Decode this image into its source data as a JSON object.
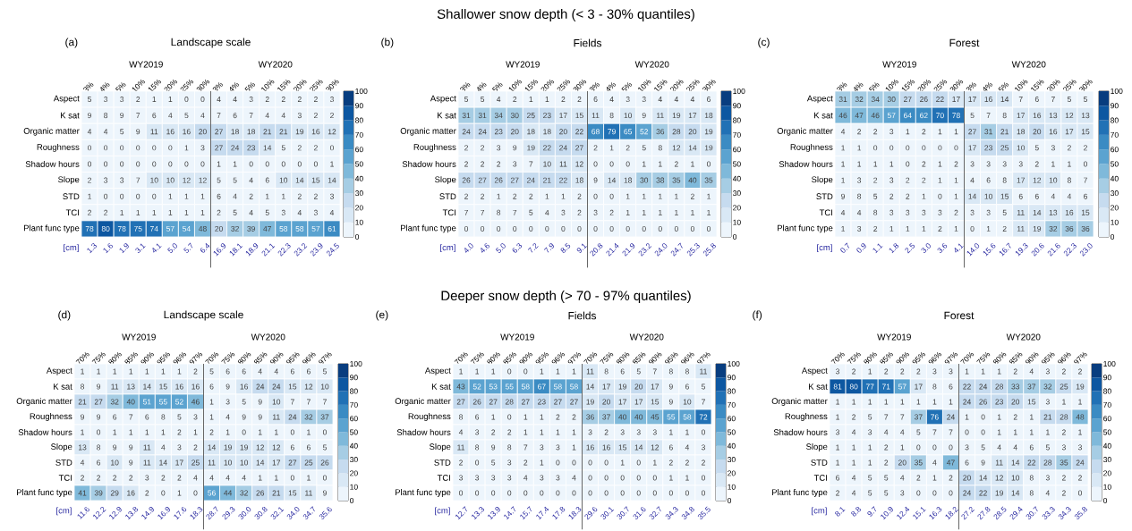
{
  "chart_data": [
    {
      "type": "heatmap",
      "data_labels": true,
      "title": "Landscape scale",
      "xlabel": "[cm]",
      "annotations": [
        "Shallower snow depth (< 3 - 30% quantiles)",
        "(a)",
        "WY2019",
        "WY2020",
        "1.3",
        "1.6",
        "1.9",
        "3.1",
        "4.1",
        "5.0",
        "5.7",
        "6.4",
        "16.9",
        "18.1",
        "18.9",
        "21.1",
        "22.3",
        "23.2",
        "23.9",
        "24.5"
      ],
      "categories": [
        "3%",
        "4%",
        "5%",
        "10%",
        "15%",
        "20%",
        "25%",
        "30%",
        "3%",
        "4%",
        "5%",
        "10%",
        "15%",
        "20%",
        "25%",
        "30%"
      ],
      "y_categories": [
        "Aspect",
        "K sat",
        "Organic matter",
        "Roughness",
        "Shadow hours",
        "Slope",
        "STD",
        "TCI",
        "Plant func type"
      ],
      "cells": [
        [
          5,
          3,
          3,
          2,
          1,
          1,
          0,
          0,
          4,
          4,
          3,
          2,
          2,
          2,
          2,
          3
        ],
        [
          9,
          8,
          9,
          7,
          6,
          4,
          5,
          4,
          7,
          6,
          7,
          4,
          4,
          3,
          2,
          2
        ],
        [
          4,
          4,
          5,
          9,
          11,
          16,
          16,
          20,
          27,
          18,
          18,
          21,
          21,
          19,
          16,
          12
        ],
        [
          0,
          0,
          0,
          0,
          0,
          0,
          1,
          3,
          27,
          24,
          23,
          14,
          5,
          2,
          2,
          0
        ],
        [
          0,
          0,
          0,
          0,
          0,
          0,
          0,
          0,
          1,
          1,
          0,
          0,
          0,
          0,
          0,
          1
        ],
        [
          2,
          3,
          3,
          7,
          10,
          10,
          12,
          12,
          5,
          5,
          4,
          6,
          10,
          14,
          15,
          14
        ],
        [
          1,
          0,
          0,
          0,
          0,
          1,
          1,
          1,
          6,
          4,
          2,
          1,
          1,
          2,
          2,
          3
        ],
        [
          2,
          2,
          1,
          1,
          1,
          1,
          1,
          1,
          2,
          5,
          4,
          5,
          3,
          4,
          3,
          4
        ],
        [
          78,
          80,
          78,
          75,
          74,
          57,
          54,
          48,
          20,
          32,
          39,
          47,
          58,
          58,
          57,
          61
        ]
      ],
      "clim": [
        0,
        100
      ],
      "cticks": [
        0,
        10,
        20,
        30,
        40,
        50,
        60,
        70,
        80,
        90,
        100
      ]
    },
    {
      "type": "heatmap",
      "data_labels": true,
      "title": "Fields",
      "xlabel": "[cm]",
      "annotations": [
        "(b)",
        "WY2019",
        "WY2020",
        "4.0",
        "4.6",
        "5.0",
        "6.3",
        "7.2",
        "7.9",
        "8.5",
        "9.1",
        "20.8",
        "21.4",
        "21.9",
        "23.2",
        "24.0",
        "24.7",
        "25.3",
        "25.8"
      ],
      "categories": [
        "3%",
        "4%",
        "5%",
        "10%",
        "15%",
        "20%",
        "25%",
        "30%",
        "3%",
        "4%",
        "5%",
        "10%",
        "15%",
        "20%",
        "25%",
        "30%"
      ],
      "y_categories": [
        "Aspect",
        "K sat",
        "Organic matter",
        "Roughness",
        "Shadow hours",
        "Slope",
        "STD",
        "TCI",
        "Plant func type"
      ],
      "cells": [
        [
          5,
          5,
          4,
          2,
          1,
          1,
          2,
          2,
          6,
          4,
          3,
          3,
          4,
          4,
          4,
          6
        ],
        [
          31,
          31,
          34,
          30,
          25,
          23,
          17,
          15,
          11,
          8,
          10,
          9,
          11,
          19,
          17,
          18
        ],
        [
          24,
          24,
          23,
          20,
          18,
          18,
          20,
          22,
          68,
          79,
          65,
          52,
          36,
          28,
          20,
          19
        ],
        [
          2,
          2,
          3,
          9,
          19,
          22,
          24,
          27,
          2,
          1,
          2,
          5,
          8,
          12,
          14,
          19
        ],
        [
          2,
          2,
          2,
          3,
          7,
          10,
          11,
          12,
          0,
          0,
          0,
          1,
          1,
          2,
          1,
          0
        ],
        [
          26,
          27,
          26,
          27,
          24,
          21,
          22,
          18,
          9,
          14,
          18,
          30,
          38,
          35,
          40,
          35
        ],
        [
          2,
          2,
          1,
          2,
          2,
          1,
          1,
          2,
          0,
          0,
          1,
          1,
          1,
          1,
          2,
          1
        ],
        [
          7,
          7,
          8,
          7,
          5,
          4,
          3,
          2,
          3,
          2,
          1,
          1,
          1,
          1,
          1,
          1
        ],
        [
          0,
          0,
          0,
          0,
          0,
          0,
          0,
          0,
          0,
          0,
          0,
          0,
          0,
          0,
          0,
          0
        ]
      ],
      "clim": [
        0,
        100
      ],
      "cticks": [
        0,
        10,
        20,
        30,
        40,
        50,
        60,
        70,
        80,
        90,
        100
      ]
    },
    {
      "type": "heatmap",
      "data_labels": true,
      "title": "Forest",
      "xlabel": "[cm]",
      "annotations": [
        "(c)",
        "WY2019",
        "WY2020",
        "0.7",
        "0.9",
        "1.1",
        "1.8",
        "2.5",
        "3.0",
        "3.6",
        "4.1",
        "14.0",
        "15.6",
        "16.7",
        "19.3",
        "20.6",
        "21.6",
        "22.3",
        "23.0"
      ],
      "categories": [
        "3%",
        "4%",
        "5%",
        "10%",
        "15%",
        "20%",
        "25%",
        "30%",
        "3%",
        "4%",
        "5%",
        "10%",
        "15%",
        "20%",
        "25%",
        "30%"
      ],
      "y_categories": [
        "Aspect",
        "K sat",
        "Organic matter",
        "Roughness",
        "Shadow hours",
        "Slope",
        "STD",
        "TCI",
        "Plant func type"
      ],
      "cells": [
        [
          31,
          32,
          34,
          30,
          27,
          26,
          22,
          17,
          17,
          16,
          14,
          7,
          6,
          7,
          5,
          5
        ],
        [
          46,
          47,
          46,
          57,
          64,
          62,
          70,
          78,
          5,
          7,
          8,
          17,
          16,
          13,
          12,
          13
        ],
        [
          4,
          2,
          2,
          3,
          1,
          2,
          1,
          1,
          27,
          31,
          21,
          18,
          20,
          16,
          17,
          15
        ],
        [
          1,
          1,
          0,
          0,
          0,
          0,
          0,
          0,
          17,
          23,
          25,
          10,
          5,
          3,
          2,
          2
        ],
        [
          1,
          1,
          1,
          1,
          0,
          2,
          1,
          2,
          3,
          3,
          3,
          3,
          2,
          1,
          1,
          0
        ],
        [
          1,
          3,
          2,
          3,
          2,
          2,
          1,
          1,
          4,
          6,
          8,
          17,
          12,
          10,
          8,
          7
        ],
        [
          9,
          8,
          5,
          2,
          2,
          1,
          0,
          1,
          14,
          10,
          15,
          6,
          6,
          4,
          4,
          6
        ],
        [
          4,
          4,
          8,
          3,
          3,
          3,
          3,
          2,
          3,
          3,
          5,
          11,
          14,
          13,
          16,
          15
        ],
        [
          1,
          3,
          2,
          1,
          1,
          1,
          2,
          1,
          0,
          1,
          2,
          11,
          19,
          32,
          36,
          36
        ]
      ],
      "clim": [
        0,
        100
      ],
      "cticks": [
        0,
        10,
        20,
        30,
        40,
        50,
        60,
        70,
        80,
        90,
        100
      ]
    },
    {
      "type": "heatmap",
      "data_labels": true,
      "title": "Landscape scale",
      "xlabel": "[cm]",
      "annotations": [
        "Deeper snow depth (> 70 - 97% quantiles)",
        "(d)",
        "WY2019",
        "WY2020",
        "11.6",
        "12.2",
        "12.9",
        "13.8",
        "14.9",
        "16.9",
        "17.6",
        "18.3",
        "28.7",
        "29.3",
        "30.0",
        "30.8",
        "32.1",
        "34.0",
        "34.7",
        "35.6"
      ],
      "categories": [
        "70%",
        "75%",
        "80%",
        "85%",
        "90%",
        "95%",
        "96%",
        "97%",
        "70%",
        "75%",
        "80%",
        "85%",
        "90%",
        "95%",
        "96%",
        "97%"
      ],
      "y_categories": [
        "Aspect",
        "K sat",
        "Organic matter",
        "Roughness",
        "Shadow hours",
        "Slope",
        "STD",
        "TCI",
        "Plant func type"
      ],
      "cells": [
        [
          1,
          1,
          1,
          1,
          1,
          1,
          1,
          2,
          5,
          6,
          6,
          4,
          4,
          6,
          6,
          5
        ],
        [
          8,
          9,
          11,
          13,
          14,
          15,
          16,
          16,
          6,
          9,
          16,
          24,
          24,
          15,
          12,
          10
        ],
        [
          21,
          27,
          32,
          40,
          51,
          55,
          52,
          46,
          1,
          3,
          5,
          9,
          10,
          7,
          7,
          7
        ],
        [
          9,
          9,
          6,
          7,
          6,
          8,
          5,
          3,
          1,
          4,
          9,
          9,
          11,
          24,
          32,
          37
        ],
        [
          1,
          0,
          1,
          1,
          1,
          1,
          2,
          1,
          2,
          1,
          0,
          1,
          1,
          0,
          1,
          0
        ],
        [
          13,
          8,
          9,
          9,
          11,
          4,
          3,
          2,
          14,
          19,
          19,
          12,
          12,
          6,
          6,
          5
        ],
        [
          4,
          6,
          10,
          9,
          11,
          14,
          17,
          25,
          11,
          10,
          10,
          14,
          17,
          27,
          25,
          26
        ],
        [
          2,
          2,
          2,
          2,
          3,
          2,
          2,
          4,
          4,
          4,
          4,
          1,
          1,
          0,
          1,
          0
        ],
        [
          41,
          39,
          29,
          16,
          2,
          0,
          1,
          0,
          56,
          44,
          32,
          26,
          21,
          15,
          11,
          9
        ]
      ],
      "clim": [
        0,
        100
      ],
      "cticks": [
        0,
        10,
        20,
        30,
        40,
        50,
        60,
        70,
        80,
        90,
        100
      ]
    },
    {
      "type": "heatmap",
      "data_labels": true,
      "title": "Fields",
      "xlabel": "[cm]",
      "annotations": [
        "(e)",
        "WY2019",
        "WY2020",
        "12.7",
        "13.3",
        "13.9",
        "14.7",
        "15.7",
        "17.4",
        "17.8",
        "18.3",
        "29.6",
        "30.1",
        "30.7",
        "31.6",
        "32.7",
        "34.3",
        "34.8",
        "35.5"
      ],
      "categories": [
        "70%",
        "75%",
        "80%",
        "85%",
        "90%",
        "95%",
        "96%",
        "97%",
        "70%",
        "75%",
        "80%",
        "85%",
        "90%",
        "95%",
        "96%",
        "97%"
      ],
      "y_categories": [
        "Aspect",
        "K sat",
        "Organic matter",
        "Roughness",
        "Shadow hours",
        "Slope",
        "STD",
        "TCI",
        "Plant func type"
      ],
      "cells": [
        [
          1,
          1,
          1,
          0,
          0,
          1,
          1,
          1,
          11,
          8,
          6,
          5,
          7,
          8,
          8,
          11
        ],
        [
          43,
          52,
          53,
          55,
          58,
          67,
          58,
          58,
          14,
          17,
          19,
          20,
          17,
          9,
          6,
          5
        ],
        [
          27,
          26,
          27,
          28,
          27,
          23,
          27,
          27,
          19,
          20,
          17,
          17,
          15,
          9,
          10,
          7
        ],
        [
          8,
          6,
          1,
          0,
          1,
          1,
          2,
          2,
          36,
          37,
          40,
          40,
          45,
          55,
          58,
          72
        ],
        [
          4,
          3,
          2,
          2,
          1,
          1,
          1,
          1,
          3,
          2,
          3,
          3,
          3,
          1,
          1,
          0
        ],
        [
          11,
          8,
          9,
          8,
          7,
          3,
          3,
          1,
          16,
          16,
          15,
          14,
          12,
          6,
          4,
          3
        ],
        [
          2,
          0,
          5,
          3,
          2,
          1,
          0,
          0,
          0,
          0,
          1,
          0,
          1,
          2,
          2,
          2
        ],
        [
          3,
          3,
          3,
          3,
          4,
          3,
          3,
          4,
          0,
          0,
          0,
          0,
          0,
          1,
          1,
          0
        ],
        [
          0,
          0,
          0,
          0,
          0,
          0,
          0,
          0,
          0,
          0,
          0,
          0,
          0,
          0,
          0,
          0
        ]
      ],
      "clim": [
        0,
        100
      ],
      "cticks": [
        0,
        10,
        20,
        30,
        40,
        50,
        60,
        70,
        80,
        90,
        100
      ]
    },
    {
      "type": "heatmap",
      "data_labels": true,
      "title": "Forest",
      "xlabel": "[cm]",
      "annotations": [
        "(f)",
        "WY2019",
        "WY2020",
        "8.1",
        "8.8",
        "9.7",
        "10.9",
        "12.4",
        "15.1",
        "16.3",
        "18.2",
        "27.2",
        "27.8",
        "28.5",
        "29.4",
        "30.7",
        "33.3",
        "34.3",
        "35.8"
      ],
      "categories": [
        "70%",
        "75%",
        "80%",
        "85%",
        "90%",
        "95%",
        "96%",
        "97%",
        "70%",
        "75%",
        "80%",
        "85%",
        "90%",
        "95%",
        "96%",
        "97%"
      ],
      "y_categories": [
        "Aspect",
        "K sat",
        "Organic matter",
        "Roughness",
        "Shadow hours",
        "Slope",
        "STD",
        "TCI",
        "Plant func type"
      ],
      "cells": [
        [
          3,
          2,
          1,
          2,
          2,
          2,
          3,
          3,
          1,
          1,
          1,
          2,
          4,
          3,
          2,
          2
        ],
        [
          81,
          80,
          77,
          71,
          57,
          17,
          8,
          6,
          22,
          24,
          28,
          33,
          37,
          32,
          25,
          19
        ],
        [
          1,
          1,
          1,
          1,
          1,
          1,
          1,
          1,
          24,
          26,
          23,
          20,
          15,
          3,
          1,
          1
        ],
        [
          1,
          2,
          5,
          7,
          7,
          37,
          76,
          24,
          1,
          0,
          1,
          2,
          1,
          21,
          28,
          48
        ],
        [
          3,
          4,
          3,
          4,
          4,
          5,
          7,
          7,
          0,
          0,
          1,
          1,
          1,
          1,
          2,
          1
        ],
        [
          1,
          1,
          1,
          2,
          1,
          0,
          0,
          0,
          3,
          5,
          4,
          4,
          6,
          5,
          3,
          3
        ],
        [
          1,
          1,
          1,
          2,
          20,
          35,
          4,
          47,
          6,
          9,
          11,
          14,
          22,
          28,
          35,
          24
        ],
        [
          6,
          4,
          5,
          5,
          4,
          2,
          1,
          2,
          20,
          14,
          12,
          10,
          8,
          3,
          2,
          2
        ],
        [
          2,
          4,
          5,
          5,
          3,
          0,
          0,
          0,
          24,
          22,
          19,
          14,
          8,
          4,
          2,
          0
        ]
      ],
      "clim": [
        0,
        100
      ],
      "cticks": [
        0,
        10,
        20,
        30,
        40,
        50,
        60,
        70,
        80,
        90,
        100
      ]
    }
  ]
}
